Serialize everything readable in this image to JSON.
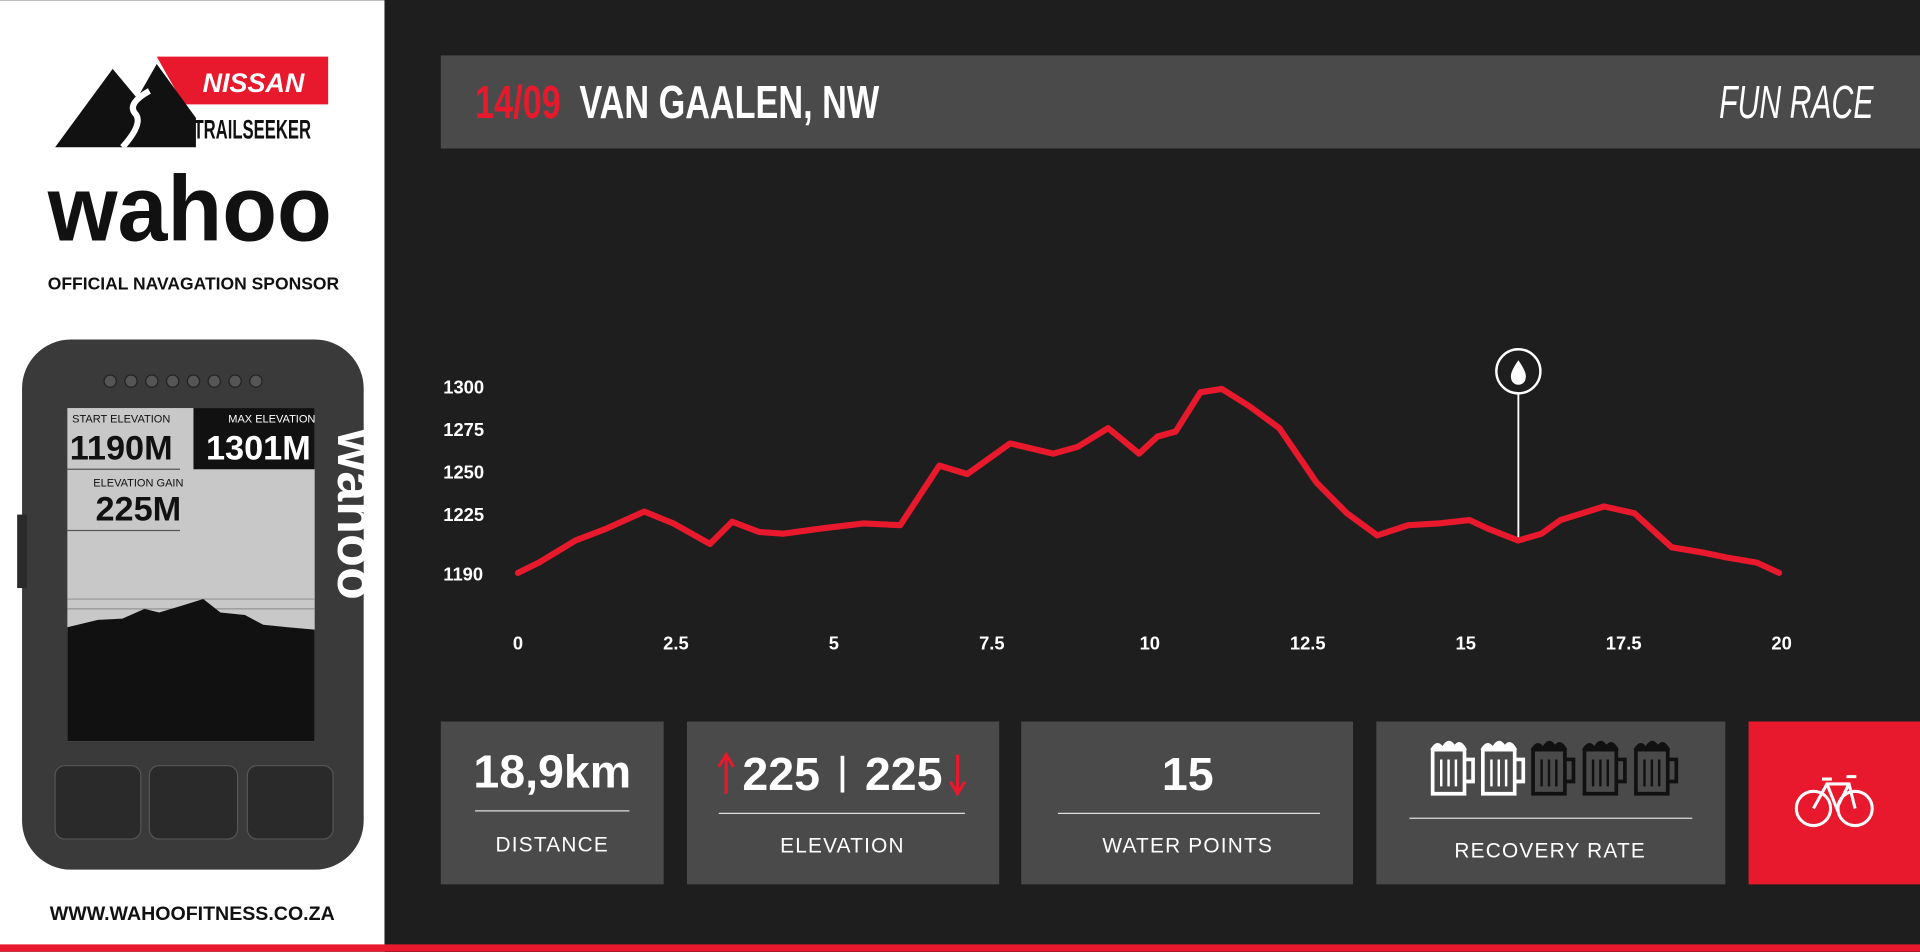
{
  "sidebar": {
    "brand": "NISSAN",
    "sub": "TRAILSEEKER",
    "sponsor": "wahoo",
    "sponsor_note": "OFFICIAL NAVAGATION SPONSOR",
    "device": {
      "start_label": "START ELEVATION",
      "start": "1190M",
      "max_label": "MAX ELEVATION",
      "max": "1301M",
      "gain_label": "ELEVATION GAIN",
      "gain": "225M"
    },
    "website": "WWW.WAHOOFITNESS.CO.ZA"
  },
  "header": {
    "date": "14/09",
    "place": "VAN GAALEN, NW",
    "event": "FUN RACE"
  },
  "chart_data": {
    "type": "line",
    "color": "#e8192c",
    "grid": false,
    "x": [
      0,
      0.33,
      0.91,
      1.4,
      2.0,
      2.46,
      3.04,
      3.39,
      3.82,
      4.2,
      4.79,
      5.47,
      6.05,
      6.67,
      7.11,
      7.79,
      8.47,
      8.86,
      9.34,
      9.54,
      9.83,
      10.12,
      10.41,
      10.8,
      11.14,
      11.57,
      12.05,
      12.64,
      13.12,
      13.6,
      14.09,
      14.57,
      15.06,
      15.35,
      15.83,
      16.2,
      16.5,
      17.19,
      17.67,
      18.26,
      18.74,
      19.13,
      19.61,
      19.96
    ],
    "values": [
      1191,
      1197,
      1210,
      1217,
      1227,
      1220,
      1208,
      1221,
      1215,
      1214,
      1217,
      1220,
      1219,
      1254,
      1249,
      1267,
      1261,
      1265,
      1276,
      1270,
      1261,
      1271,
      1274,
      1297,
      1299,
      1289,
      1276,
      1244,
      1226,
      1213,
      1219,
      1220,
      1222,
      1217,
      1210,
      1214,
      1222,
      1230,
      1226,
      1206,
      1203,
      1200,
      1197,
      1191
    ],
    "xlim": [
      0,
      20
    ],
    "xticks": [
      0,
      2.5,
      5,
      7.5,
      10,
      12.5,
      15,
      17.5,
      20
    ],
    "ylim": [
      1190,
      1300
    ],
    "yticks": [
      1190,
      1225,
      1250,
      1275,
      1300
    ]
  },
  "stats": {
    "distance": {
      "value": "18,9km",
      "label": "DISTANCE"
    },
    "elevation": {
      "up": "225",
      "down": "225",
      "label": "ELEVATION"
    },
    "water": {
      "value": "15",
      "label": "WATER POINTS"
    },
    "recovery": {
      "label": "RECOVERY RATE"
    }
  }
}
